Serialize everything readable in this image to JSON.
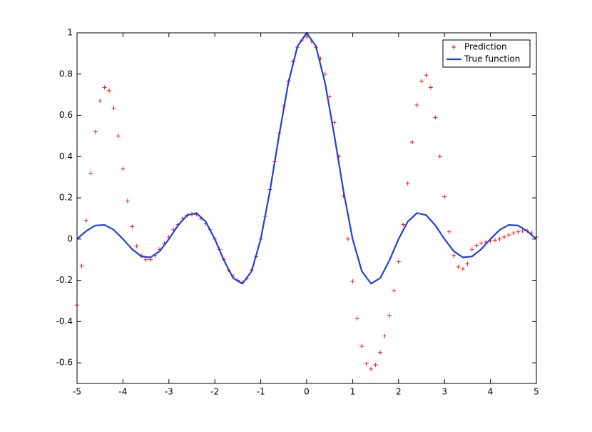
{
  "chart_data": {
    "type": "line",
    "series": [
      {
        "name": "Prediction",
        "color": "#ff0000",
        "marker": "+",
        "x": [
          -5,
          -4.9,
          -4.8,
          -4.7,
          -4.6,
          -4.5,
          -4.4,
          -4.3,
          -4.2,
          -4.1,
          -4,
          -3.9,
          -3.8,
          -3.7,
          -3.6,
          -3.5,
          -3.4,
          -3.3,
          -3.2,
          -3.1,
          -3,
          -2.9,
          -2.8,
          -2.7,
          -2.6,
          -2.5,
          -2.4,
          -2.3,
          -2.2,
          -2.1,
          -2,
          -1.9,
          -1.8,
          -1.7,
          -1.6,
          -1.5,
          -1.4,
          -1.3,
          -1.2,
          -1.1,
          -1,
          -0.9,
          -0.8,
          -0.7,
          -0.6,
          -0.5,
          -0.4,
          -0.3,
          -0.2,
          -0.1,
          0,
          0.1,
          0.2,
          0.3,
          0.4,
          0.5,
          0.6,
          0.7,
          0.8,
          0.9,
          1,
          1.1,
          1.2,
          1.3,
          1.4,
          1.5,
          1.6,
          1.7,
          1.8,
          1.9,
          2,
          2.1,
          2.2,
          2.3,
          2.4,
          2.5,
          2.6,
          2.7,
          2.8,
          2.9,
          3,
          3.1,
          3.2,
          3.3,
          3.4,
          3.5,
          3.6,
          3.7,
          3.8,
          3.9,
          4,
          4.1,
          4.2,
          4.3,
          4.4,
          4.5,
          4.6,
          4.7,
          4.8,
          4.9,
          5
        ],
        "values": [
          -0.32,
          -0.13,
          0.09,
          0.32,
          0.52,
          0.67,
          0.735,
          0.72,
          0.635,
          0.5,
          0.34,
          0.185,
          0.06,
          -0.035,
          -0.08,
          -0.1,
          -0.1,
          -0.08,
          -0.05,
          -0.02,
          0.01,
          0.045,
          0.07,
          0.1,
          0.115,
          0.12,
          0.12,
          0.1,
          0.075,
          0.045,
          0,
          -0.05,
          -0.1,
          -0.15,
          -0.18,
          -0.2,
          -0.21,
          -0.19,
          -0.15,
          -0.085,
          0,
          0.11,
          0.24,
          0.375,
          0.515,
          0.645,
          0.765,
          0.86,
          0.93,
          0.965,
          0.98,
          0.96,
          0.93,
          0.875,
          0.8,
          0.69,
          0.565,
          0.4,
          0.21,
          0,
          -0.205,
          -0.385,
          -0.52,
          -0.605,
          -0.63,
          -0.61,
          -0.55,
          -0.47,
          -0.37,
          -0.25,
          -0.11,
          0.07,
          0.27,
          0.47,
          0.65,
          0.765,
          0.795,
          0.735,
          0.59,
          0.4,
          0.205,
          0.035,
          -0.08,
          -0.135,
          -0.145,
          -0.12,
          -0.05,
          -0.03,
          -0.02,
          -0.015,
          -0.01,
          -0.005,
          0,
          0.01,
          0.02,
          0.03,
          0.035,
          0.04,
          0.04,
          0.03,
          0.01
        ]
      },
      {
        "name": "True function",
        "color": "#1f3fe0",
        "marker": "line",
        "x": [
          -5,
          -4.8,
          -4.6,
          -4.4,
          -4.2,
          -4,
          -3.8,
          -3.6,
          -3.4,
          -3.2,
          -3,
          -2.8,
          -2.6,
          -2.4,
          -2.2,
          -2,
          -1.8,
          -1.6,
          -1.4,
          -1.2,
          -1,
          -0.8,
          -0.6,
          -0.4,
          -0.2,
          0,
          0.2,
          0.4,
          0.6,
          0.8,
          1,
          1.2,
          1.4,
          1.6,
          1.8,
          2,
          2.2,
          2.4,
          2.6,
          2.8,
          3,
          3.2,
          3.4,
          3.6,
          3.8,
          4,
          4.2,
          4.4,
          4.6,
          4.8,
          5
        ],
        "values": [
          0,
          0.039,
          0.0658,
          0.0688,
          0.0445,
          0,
          -0.0492,
          -0.0841,
          -0.089,
          -0.0585,
          0,
          0.0668,
          0.1164,
          0.1261,
          0.085,
          0,
          -0.1039,
          -0.1892,
          -0.2162,
          -0.1559,
          0,
          0.2339,
          0.5046,
          0.7568,
          0.9355,
          1,
          0.9355,
          0.7568,
          0.5046,
          0.2339,
          0,
          -0.1559,
          -0.2162,
          -0.1892,
          -0.1039,
          0,
          0.085,
          0.1261,
          0.1164,
          0.0668,
          0,
          -0.0585,
          -0.089,
          -0.0841,
          -0.0492,
          0,
          0.0445,
          0.0688,
          0.0658,
          0.039,
          0
        ]
      }
    ],
    "xlim": [
      -5,
      5
    ],
    "ylim": [
      -0.7,
      1
    ],
    "xticks": [
      -5,
      -4,
      -3,
      -2,
      -1,
      0,
      1,
      2,
      3,
      4,
      5
    ],
    "yticks": [
      -0.6,
      -0.4,
      -0.2,
      0,
      0.2,
      0.4,
      0.6,
      0.8,
      1
    ],
    "grid": false,
    "legend": "top-right"
  }
}
